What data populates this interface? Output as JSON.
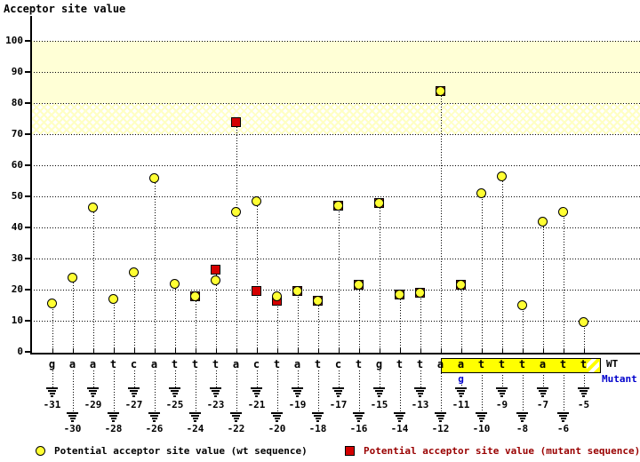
{
  "title": "Acceptor site value",
  "legend": {
    "wt_label": "Potential acceptor site value (wt sequence)",
    "mutant_label": "Potential acceptor site value (mutant sequence)"
  },
  "sequence": {
    "wt_label": "WT",
    "mutant_label": "Mutant",
    "mutant_base": "g",
    "mutant_position": -11
  },
  "colors": {
    "wt_marker": "#ffff33",
    "mutant_marker": "#d40000",
    "band_solid": "#ffffd6",
    "box_fill": "#ffff00",
    "mutant_text": "#0000cc",
    "legend_mutant_text": "#990000"
  },
  "chart_data": {
    "type": "scatter",
    "title": "Acceptor site value",
    "ylabel": "Acceptor site value",
    "xlabel": "",
    "ylim": [
      0,
      100
    ],
    "y_ticks": [
      0,
      10,
      20,
      30,
      40,
      50,
      60,
      70,
      80,
      90,
      100
    ],
    "grid": "dotted-horizontal",
    "legend_position": "bottom",
    "highlight_bands": [
      {
        "from": 80,
        "to": 100,
        "style": "solid"
      },
      {
        "from": 70,
        "to": 80,
        "style": "crosshatch"
      }
    ],
    "positions": [
      -31,
      -30,
      -29,
      -28,
      -27,
      -26,
      -25,
      -24,
      -23,
      -22,
      -21,
      -20,
      -19,
      -18,
      -17,
      -16,
      -15,
      -14,
      -13,
      -12,
      -11,
      -10,
      -9,
      -8,
      -7,
      -6,
      -5
    ],
    "bases": [
      "g",
      "a",
      "a",
      "t",
      "c",
      "a",
      "t",
      "t",
      "t",
      "a",
      "c",
      "t",
      "a",
      "t",
      "c",
      "t",
      "g",
      "t",
      "t",
      "a",
      "a",
      "t",
      "t",
      "t",
      "a",
      "t",
      "t"
    ],
    "mutant_box_range": [
      -11,
      -5
    ],
    "series": [
      {
        "name": "wt",
        "marker": "circle",
        "color": "#ffff33",
        "values": [
          15.5,
          24,
          46.5,
          17,
          25.5,
          56,
          22,
          18,
          23,
          45,
          48.5,
          18,
          19.5,
          16.5,
          47,
          21.5,
          48,
          18.5,
          19,
          84,
          21.5,
          51,
          56.5,
          15,
          42,
          45,
          9.5
        ]
      },
      {
        "name": "mutant",
        "marker": "square",
        "color": "#d40000",
        "values": [
          null,
          null,
          null,
          null,
          null,
          null,
          null,
          18,
          26.5,
          74,
          19.5,
          16.5,
          19.5,
          16.5,
          47,
          21.5,
          48,
          18.5,
          19,
          84,
          21.5,
          null,
          null,
          null,
          null,
          null,
          null
        ]
      }
    ]
  }
}
